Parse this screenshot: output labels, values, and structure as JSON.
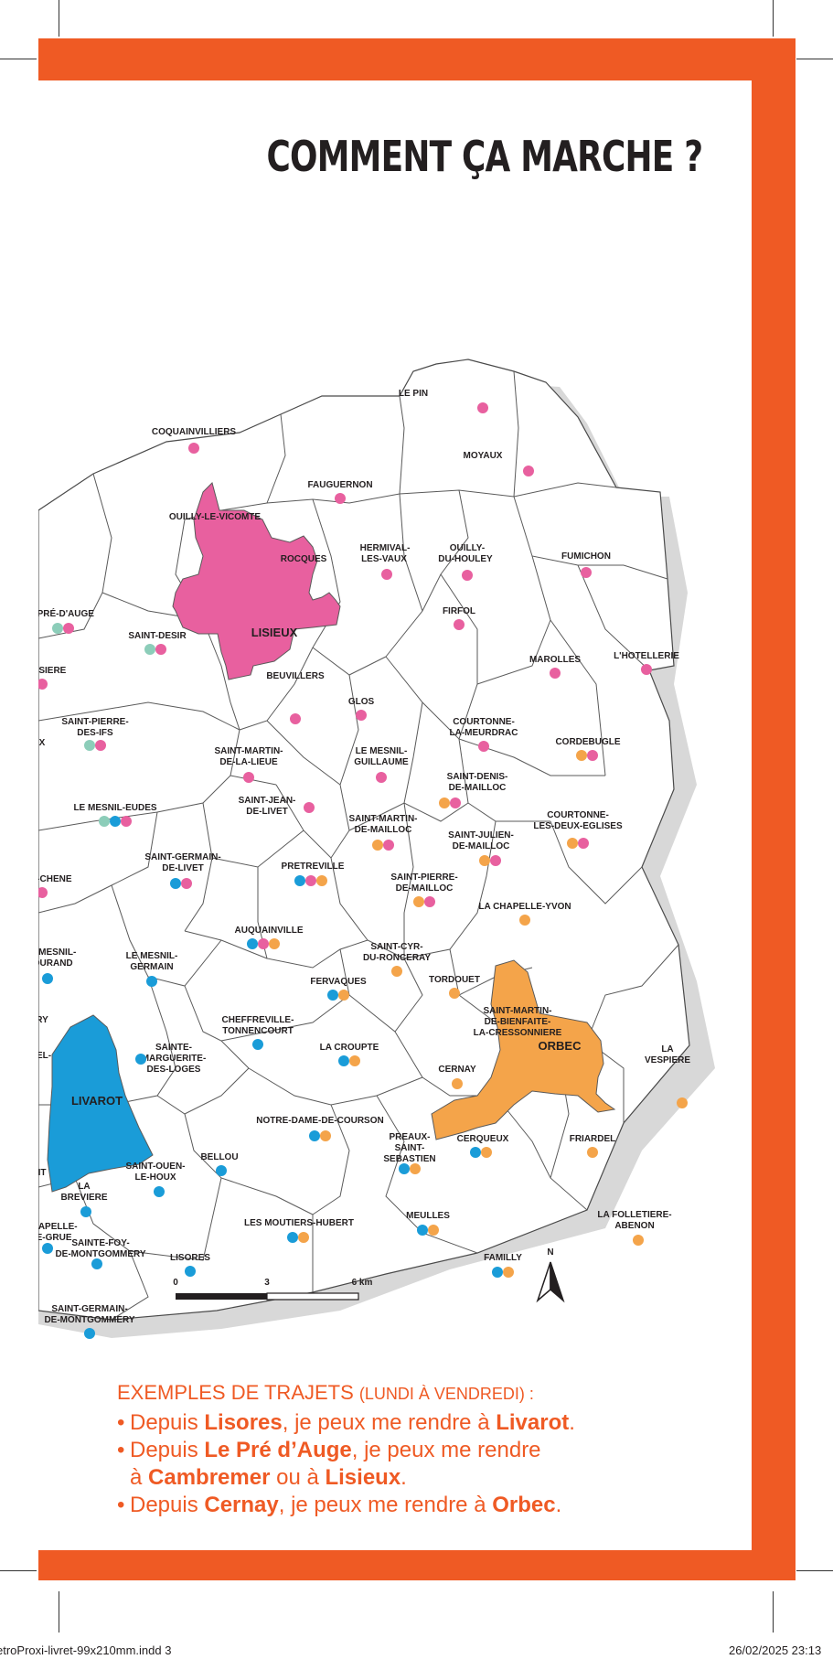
{
  "page_title": "COMMENT ÇA MARCHE ?",
  "colors": {
    "frame": "#ef5a24",
    "lisieux_area": "#e8609f",
    "livarot_area": "#1a9cd8",
    "orbec_area": "#f4a44a",
    "dot_pink": "#e8609f",
    "dot_blue": "#1a9cd8",
    "dot_orange": "#f4a44a",
    "dot_teal": "#8ccdb9"
  },
  "map": {
    "poles": {
      "lisieux": "LISIEUX",
      "livarot": "LIVAROT",
      "orbec": "ORBEC"
    },
    "communes": {
      "le_pin": "LE PIN",
      "coquainvilliers": "COQUAINVILLIERS",
      "moyaux": "MOYAUX",
      "fauguernon": "FAUGUERNON",
      "ouilly_le_vicomte": "OUILLY-LE-VICOMTE",
      "rocques": "ROCQUES",
      "hermival_1": "HERMIVAL-",
      "hermival_2": "LES-VAUX",
      "ouilly_du_houley_1": "OUILLY-",
      "ouilly_du_houley_2": "DU-HOULEY",
      "fumichon": "FUMICHON",
      "le_pre_d_auge": "LE PRÉ-D'AUGE",
      "saint_desir": "SAINT-DESIR",
      "firfol": "FIRFOL",
      "marolles": "MAROLLES",
      "l_hotellerie": "L'HOTELLERIE",
      "ssiere": "SSIERE",
      "beuvillers": "BEUVILLERS",
      "glos": "GLOS",
      "saint_pierre_des_ifs_1": "SAINT-PIERRE-",
      "saint_pierre_des_ifs_2": "DES-IFS",
      "courtonne_la_meurdrac_1": "COURTONNE-",
      "courtonne_la_meurdrac_2": "LA-MEURDRAC",
      "cordebugle": "CORDEBUGLE",
      "saint_martin_de_la_lieue_1": "SAINT-MARTIN-",
      "saint_martin_de_la_lieue_2": "DE-LA-LIEUE",
      "le_mesnil_guillaume_1": "LE MESNIL-",
      "le_mesnil_guillaume_2": "GUILLAUME",
      "saint_denis_de_mailloc_1": "SAINT-DENIS-",
      "saint_denis_de_mailloc_2": "DE-MAILLOC",
      "le_mesnil_eudes": "LE MESNIL-EUDES",
      "saint_jean_de_livet_1": "SAINT-JEAN-",
      "saint_jean_de_livet_2": "DE-LIVET",
      "saint_martin_de_mailloc_1": "SAINT-MARTIN-",
      "saint_martin_de_mailloc_2": "DE-MAILLOC",
      "courtonne_les_deux_eglises_1": "COURTONNE-",
      "courtonne_les_deux_eglises_2": "LES-DEUX-EGLISES",
      "saint_julien_de_mailloc_1": "SAINT-JULIEN-",
      "saint_julien_de_mailloc_2": "DE-MAILLOC",
      "saint_germain_de_livet_1": "SAINT-GERMAIN-",
      "saint_germain_de_livet_2": "DE-LIVET",
      "le_chene": "E-CHENE",
      "pretreville": "PRETREVILLE",
      "saint_pierre_de_mailloc_1": "SAINT-PIERRE-",
      "saint_pierre_de_mailloc_2": "DE-MAILLOC",
      "la_chapelle_yvon": "LA CHAPELLE-YVON",
      "auquainville": "AUQUAINVILLE",
      "le_mesnil_durand_1": "E MESNIL-",
      "le_mesnil_durand_2": "DURAND",
      "le_mesnil_germain_1": "LE MESNIL-",
      "le_mesnil_germain_2": "GERMAIN",
      "saint_cyr_du_ronceray_1": "SAINT-CYR-",
      "saint_cyr_du_ronceray_2": "DU-RONCERAY",
      "fervaques": "FERVAQUES",
      "tordouet": "TORDOUET",
      "saint_martin_de_bienfaite_1": "SAINT-MARTIN-",
      "saint_martin_de_bienfaite_2": "DE-BIENFAITE-",
      "saint_martin_de_bienfaite_3": "LA-CRESSONNIERE",
      "cheffreville_1": "CHEFFREVILLE-",
      "cheffreville_2": "TONNENCOURT",
      "la_croupte": "LA CROUPTE",
      "sainte_marguerite_1": "SAINTE-",
      "sainte_marguerite_2": "MARGUERITE-",
      "sainte_marguerite_3": "DES-LOGES",
      "cernay": "CERNAY",
      "la_vespiere_1": "LA",
      "la_vespiere_2": "VESPIERE",
      "notre_dame_de_courson": "NOTRE-DAME-DE-COURSON",
      "preaux_1": "PREAUX-",
      "preaux_2": "SAINT-",
      "preaux_3": "SEBASTIEN",
      "cerqueux": "CERQUEUX",
      "friardel": "FRIARDEL",
      "bellou": "BELLOU",
      "saint_ouen_1": "SAINT-OUEN-",
      "saint_ouen_2": "LE-HOUX",
      "la_breviere_1": "LA",
      "la_breviere_2": "BREVIERE",
      "meulles": "MEULLES",
      "la_folletiere_1": "LA FOLLETIERE-",
      "la_folletiere_2": "ABENON",
      "les_moutiers_hubert": "LES MOUTIERS-HUBERT",
      "chapelle_1": "CHAPELLE-",
      "chapelle_2": "TE-GRUE",
      "sainte_foy_1": "SAINTE-FOY-",
      "sainte_foy_2": "DE-MONTGOMMERY",
      "lisores": "LISORES",
      "familly": "FAMILLY",
      "saint_germain_de_montgommery_1": "SAINT-GERMAIN-",
      "saint_germain_de_montgommery_2": "DE-MONTGOMMERY",
      "edge_x": "X",
      "edge_ry": "RY",
      "edge_el": "EL-",
      "edge_it": "IT"
    },
    "scale": {
      "tick_0": "0",
      "tick_3": "3",
      "tick_6": "6 km"
    },
    "north_label": "N"
  },
  "examples": {
    "heading": "EXEMPLES DE TRAJETS",
    "heading_paren": "(LUNDI À VENDREDI) :",
    "bullet": "•",
    "line1": {
      "a": "Depuis ",
      "b": "Lisores",
      "c": ", je peux me rendre à ",
      "d": "Livarot",
      "e": "."
    },
    "line2": {
      "a": "Depuis ",
      "b": "Le Pré d’Auge",
      "c": ", je peux me rendre"
    },
    "line3": {
      "a": "à ",
      "b": "Cambremer",
      "c": " ou à ",
      "d": "Lisieux",
      "e": "."
    },
    "line4": {
      "a": "Depuis ",
      "b": "Cernay",
      "c": ", je peux me rendre à ",
      "d": "Orbec",
      "e": "."
    }
  },
  "footer": {
    "file": "etroProxi-livret-99x210mm.indd   3",
    "date": "26/02/2025   23:13"
  }
}
